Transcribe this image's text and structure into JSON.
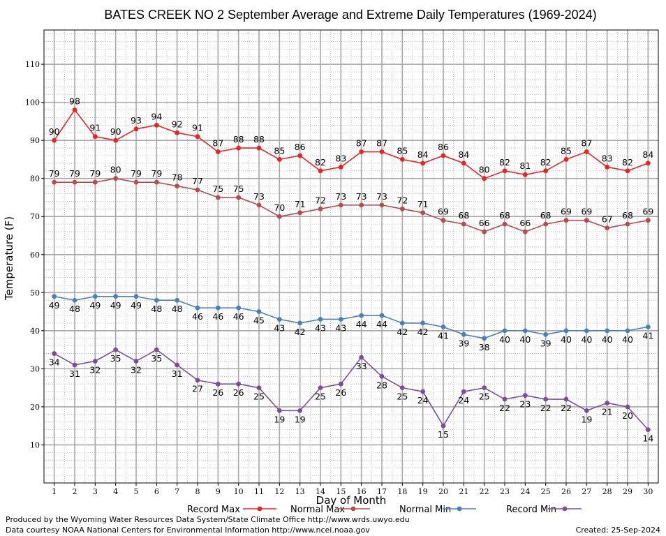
{
  "chart_data": {
    "type": "line",
    "title": "BATES CREEK NO 2 September Average and Extreme Daily Temperatures (1969-2024)",
    "xlabel": "Day of Month",
    "ylabel": "Temperature (F)",
    "ylim": [
      0,
      119
    ],
    "xlim": [
      0.5,
      30.5
    ],
    "yticks": [
      10,
      20,
      30,
      40,
      50,
      60,
      70,
      80,
      90,
      100,
      110
    ],
    "x": [
      1,
      2,
      3,
      4,
      5,
      6,
      7,
      8,
      9,
      10,
      11,
      12,
      13,
      14,
      15,
      16,
      17,
      18,
      19,
      20,
      21,
      22,
      23,
      24,
      25,
      26,
      27,
      28,
      29,
      30
    ],
    "grid": true,
    "legend_position": "bottom",
    "series": [
      {
        "name": "Record Max",
        "color": "#ee2222",
        "label_pos": "above",
        "values": [
          90,
          98,
          91,
          90,
          93,
          94,
          92,
          91,
          87,
          88,
          88,
          85,
          86,
          82,
          83,
          87,
          87,
          85,
          84,
          86,
          84,
          80,
          82,
          81,
          82,
          85,
          87,
          83,
          82,
          84
        ]
      },
      {
        "name": "Normal Max",
        "color": "#b84a50",
        "label_pos": "above",
        "values": [
          79,
          79,
          79,
          80,
          79,
          79,
          78,
          77,
          75,
          75,
          73,
          70,
          71,
          72,
          73,
          73,
          73,
          72,
          71,
          69,
          68,
          66,
          68,
          66,
          68,
          69,
          69,
          67,
          68,
          69
        ]
      },
      {
        "name": "Normal Min",
        "color": "#4a80b8",
        "label_pos": "below",
        "values": [
          49,
          48,
          49,
          49,
          49,
          48,
          48,
          46,
          46,
          46,
          45,
          43,
          42,
          43,
          43,
          44,
          44,
          42,
          42,
          41,
          39,
          38,
          40,
          40,
          39,
          40,
          40,
          40,
          40,
          41
        ]
      },
      {
        "name": "Record Min",
        "color": "#7b4f98",
        "label_pos": "below",
        "values": [
          34,
          31,
          32,
          35,
          32,
          35,
          31,
          27,
          26,
          26,
          25,
          19,
          19,
          25,
          26,
          33,
          28,
          25,
          24,
          15,
          24,
          25,
          22,
          23,
          22,
          22,
          19,
          21,
          20,
          14
        ]
      }
    ]
  },
  "footer": {
    "produced_by": "Produced by the Wyoming Water Resources Data System/State Climate Office http://www.wrds.uwyo.edu",
    "courtesy": "Data courtesy NOAA National Centers for Environmental Information http://www.ncei.noaa.gov",
    "created": "Created: 25-Sep-2024"
  }
}
